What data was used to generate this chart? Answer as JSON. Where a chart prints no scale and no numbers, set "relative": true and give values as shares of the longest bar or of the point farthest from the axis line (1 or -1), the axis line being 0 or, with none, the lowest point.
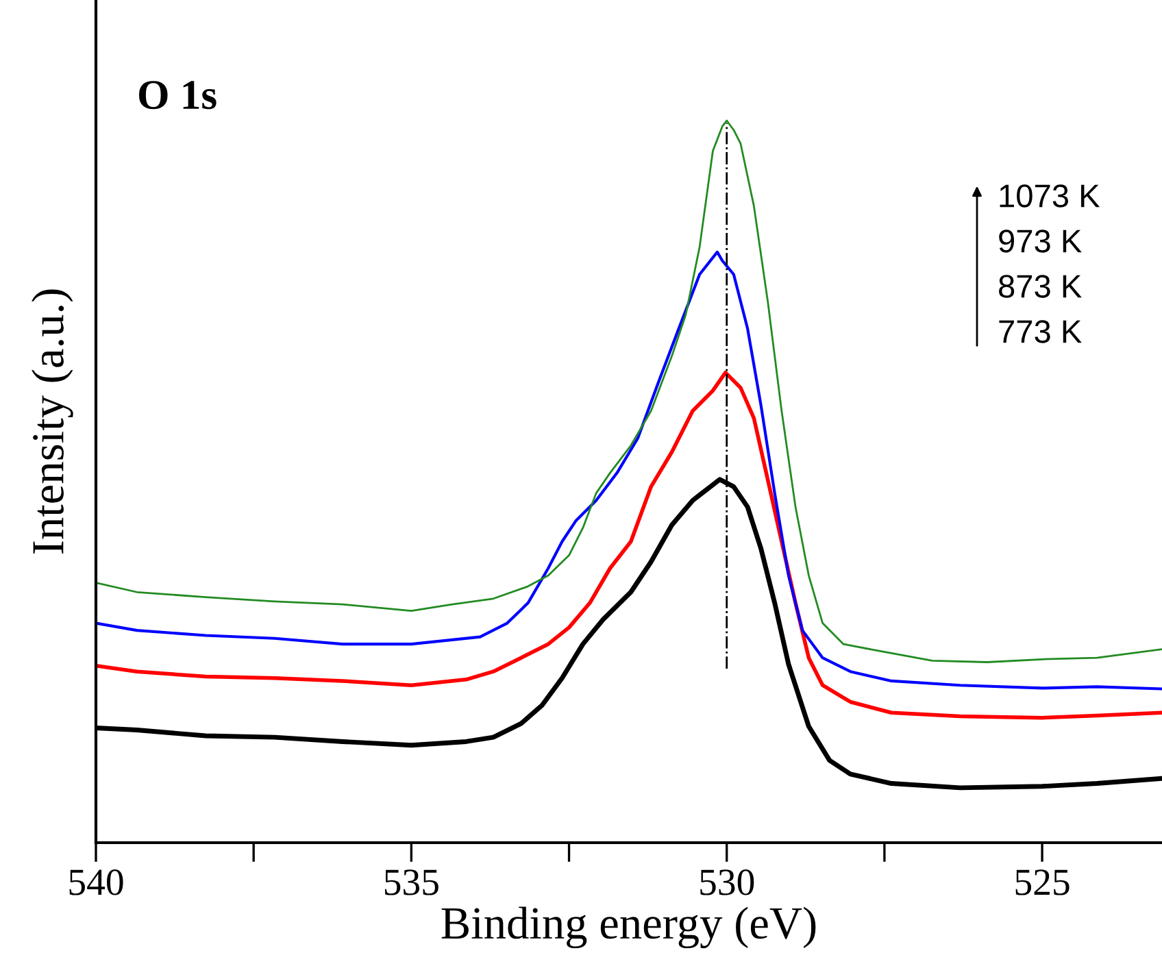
{
  "chart_data": {
    "type": "line",
    "relative": true,
    "xlabel": "Binding energy (eV)",
    "ylabel": "Intensity (a.u.)",
    "xlim": [
      540,
      523.1
    ],
    "xticks": [
      540,
      {
        "value": 537.5,
        "label": null
      },
      535,
      {
        "value": 532.5,
        "label": null
      },
      530,
      {
        "value": 527.5,
        "label": null
      },
      525
    ],
    "annotations": [
      "O 1s",
      "1073 K",
      "973 K",
      "873 K",
      "773 K"
    ],
    "ref_lines": [
      {
        "axis": "x",
        "value": 530,
        "line_style": "dashed",
        "color": "#000000"
      }
    ],
    "grid": false,
    "legend": false,
    "marker": "none",
    "line_style": "solid",
    "series": [
      {
        "color": "#000000",
        "x": [
          540,
          539.35,
          538.26,
          537.17,
          536.09,
          535.0,
          534.13,
          533.7,
          533.26,
          532.93,
          532.61,
          532.28,
          531.96,
          531.52,
          531.2,
          530.87,
          530.54,
          530.26,
          530.11,
          529.89,
          529.67,
          529.46,
          529.24,
          529.02,
          528.7,
          528.37,
          528.04,
          527.39,
          526.3,
          525.0,
          524.13,
          523.1
        ],
        "values": [
          0.159,
          0.156,
          0.148,
          0.146,
          0.14,
          0.135,
          0.14,
          0.146,
          0.165,
          0.19,
          0.228,
          0.275,
          0.309,
          0.347,
          0.389,
          0.44,
          0.474,
          0.493,
          0.503,
          0.493,
          0.465,
          0.408,
          0.332,
          0.247,
          0.161,
          0.114,
          0.095,
          0.082,
          0.076,
          0.078,
          0.082,
          0.089
        ]
      },
      {
        "color": "#ff0000",
        "x": [
          540,
          539.35,
          538.26,
          537.17,
          536.09,
          535.0,
          534.13,
          533.7,
          533.26,
          532.83,
          532.5,
          532.17,
          531.85,
          531.52,
          531.2,
          530.87,
          530.54,
          530.22,
          530.02,
          529.78,
          529.57,
          529.35,
          529.13,
          528.91,
          528.7,
          528.48,
          528.04,
          527.39,
          526.3,
          525.0,
          524.13,
          523.1
        ],
        "values": [
          0.245,
          0.237,
          0.23,
          0.228,
          0.224,
          0.218,
          0.226,
          0.237,
          0.256,
          0.275,
          0.298,
          0.332,
          0.38,
          0.417,
          0.493,
          0.541,
          0.598,
          0.626,
          0.651,
          0.63,
          0.588,
          0.503,
          0.417,
          0.332,
          0.256,
          0.218,
          0.195,
          0.18,
          0.175,
          0.173,
          0.176,
          0.18
        ]
      },
      {
        "color": "#0000ff",
        "x": [
          540,
          539.35,
          538.26,
          537.17,
          536.09,
          535.0,
          533.91,
          533.48,
          533.15,
          532.83,
          532.61,
          532.39,
          532.07,
          531.74,
          531.41,
          531.09,
          530.76,
          530.43,
          530.15,
          530.07,
          529.89,
          529.67,
          529.46,
          529.24,
          529.02,
          528.8,
          528.48,
          528.04,
          527.39,
          526.3,
          525.0,
          524.13,
          523.1
        ],
        "values": [
          0.304,
          0.294,
          0.287,
          0.283,
          0.275,
          0.275,
          0.285,
          0.304,
          0.332,
          0.38,
          0.417,
          0.446,
          0.474,
          0.512,
          0.56,
          0.636,
          0.712,
          0.787,
          0.818,
          0.806,
          0.787,
          0.712,
          0.607,
          0.484,
          0.37,
          0.294,
          0.256,
          0.237,
          0.224,
          0.218,
          0.214,
          0.216,
          0.213
        ]
      },
      {
        "color": "#228b22",
        "x": [
          540,
          539.35,
          538.26,
          537.17,
          536.09,
          535.0,
          534.35,
          533.7,
          533.15,
          532.83,
          532.5,
          532.28,
          532.07,
          531.85,
          531.52,
          531.2,
          530.87,
          530.65,
          530.43,
          530.22,
          530.07,
          530.0,
          529.89,
          529.78,
          529.57,
          529.35,
          529.13,
          528.91,
          528.7,
          528.48,
          528.15,
          527.61,
          526.74,
          525.87,
          525.0,
          524.13,
          523.1
        ],
        "values": [
          0.36,
          0.347,
          0.34,
          0.334,
          0.33,
          0.321,
          0.33,
          0.338,
          0.355,
          0.37,
          0.398,
          0.436,
          0.484,
          0.512,
          0.55,
          0.598,
          0.674,
          0.731,
          0.825,
          0.958,
          0.992,
          1.0,
          0.987,
          0.968,
          0.882,
          0.75,
          0.598,
          0.465,
          0.37,
          0.304,
          0.275,
          0.266,
          0.252,
          0.25,
          0.254,
          0.256,
          0.268
        ]
      }
    ]
  }
}
